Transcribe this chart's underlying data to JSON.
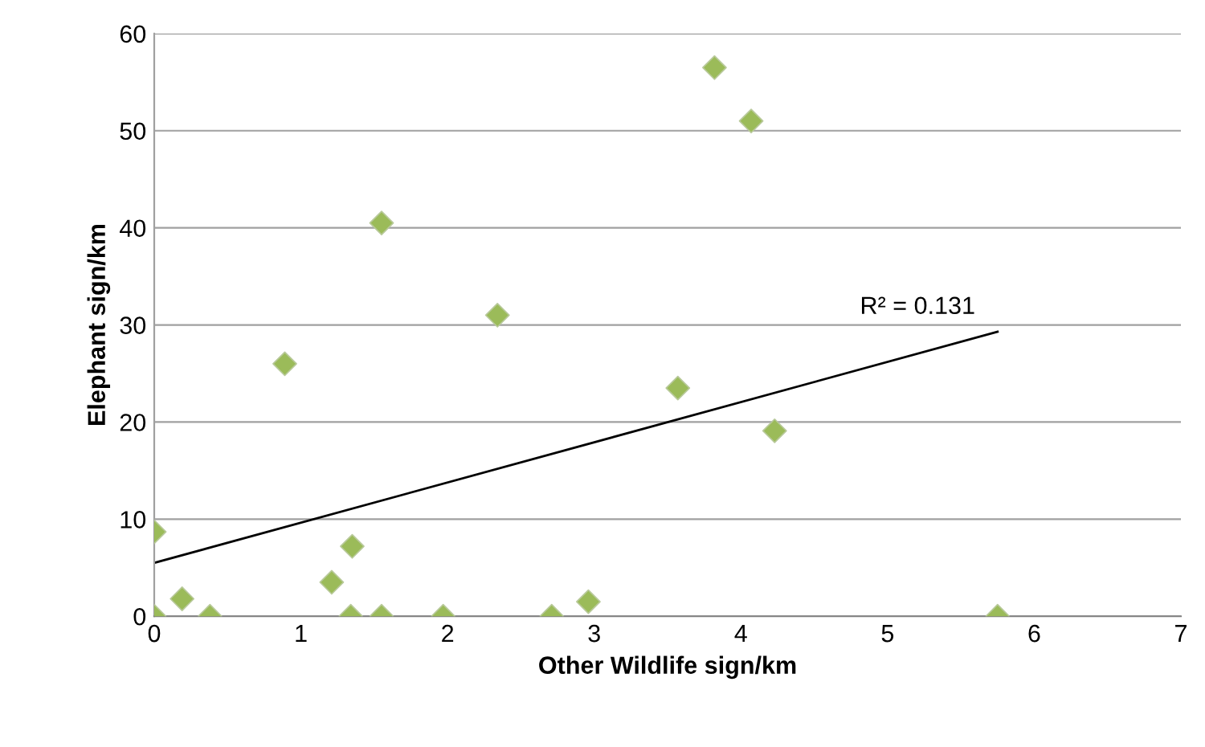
{
  "chart_data": {
    "type": "scatter",
    "xlabel": "Other Wildlife sign/km",
    "ylabel": "Elephant sign/km",
    "xlim": [
      0,
      7
    ],
    "xticks": [
      0,
      1,
      2,
      3,
      4,
      5,
      6,
      7
    ],
    "ylim": [
      0,
      60
    ],
    "yticks": [
      0,
      10,
      20,
      30,
      40,
      50,
      60
    ],
    "grid": "y",
    "legend": false,
    "series": [
      {
        "color": "#9bbb59",
        "marker": "diamond",
        "x": [
          0,
          0,
          0.19,
          0.38,
          0.89,
          1.21,
          1.35,
          1.34,
          1.55,
          1.55,
          1.97,
          2.34,
          2.71,
          2.96,
          3.57,
          3.82,
          4.07,
          4.23,
          5.75
        ],
        "values": [
          8.7,
          0,
          1.8,
          0,
          26,
          3.5,
          7.2,
          0,
          0,
          40.5,
          0,
          31,
          0,
          1.5,
          23.5,
          56.5,
          51,
          19.1,
          0
        ]
      },
      {
        "type": "line",
        "color": "#000000",
        "marker": "none",
        "line_style": "solid",
        "x": [
          0,
          5.75
        ],
        "values": [
          5.5,
          29.3
        ]
      }
    ],
    "annotations": [
      "R² = 0.131"
    ]
  }
}
